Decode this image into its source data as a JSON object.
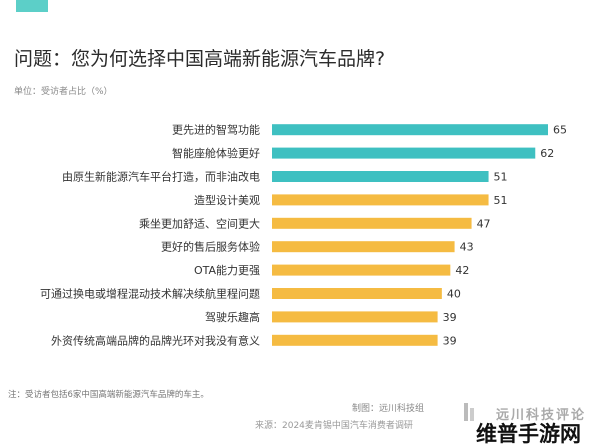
{
  "colors": {
    "teal": "#3ec0c1",
    "yellow": "#f5bb42",
    "accent": "#5ccfc8"
  },
  "header": {
    "title": "问题：您为何选择中国高端新能源汽车品牌?",
    "unit": "单位：受访者占比（%）"
  },
  "chart_data": {
    "type": "bar",
    "orientation": "horizontal",
    "title": "问题：您为何选择中国高端新能源汽车品牌?",
    "xlim": [
      0,
      65
    ],
    "grid": false,
    "categories": [
      "更先进的智驾功能",
      "智能座舱体验更好",
      "由原生新能源汽车平台打造，而非油改电",
      "造型设计美观",
      "乘坐更加舒适、空间更大",
      "更好的售后服务体验",
      "OTA能力更强",
      "可通过换电或增程混动技术解决续航里程问题",
      "驾驶乐趣高",
      "外资传统高端品牌的品牌光环对我没有意义"
    ],
    "values": [
      65,
      62,
      51,
      51,
      47,
      43,
      42,
      40,
      39,
      39
    ],
    "bar_colors": [
      "teal",
      "teal",
      "teal",
      "yellow",
      "yellow",
      "yellow",
      "yellow",
      "yellow",
      "yellow",
      "yellow"
    ]
  },
  "footer": {
    "note": "注：受访者包括6家中国高端新能源汽车品牌的车主。",
    "maker": "制图：远川科技组",
    "source": "来源：2024麦肯锡中国汽车消费者调研",
    "logo": "远川科技评论",
    "watermark": "维普手游网"
  }
}
